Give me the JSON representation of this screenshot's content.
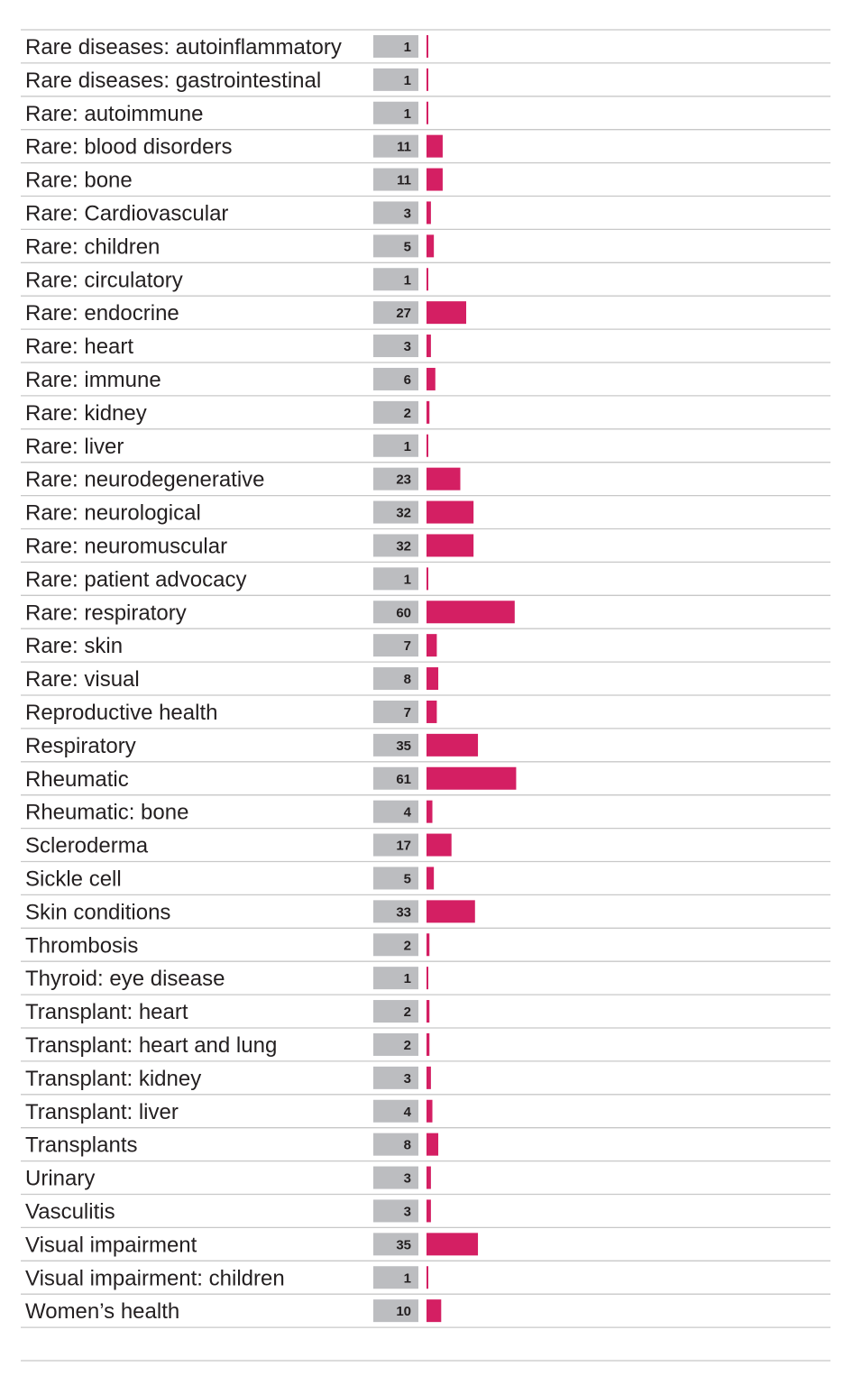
{
  "chart_data": {
    "type": "bar",
    "orientation": "horizontal",
    "categories": [
      "Rare diseases: autoinflammatory",
      "Rare diseases: gastrointestinal",
      "Rare: autoimmune",
      "Rare: blood disorders",
      "Rare: bone",
      "Rare: Cardiovascular",
      "Rare: children",
      "Rare: circulatory",
      "Rare: endocrine",
      "Rare: heart",
      "Rare: immune",
      "Rare: kidney",
      "Rare: liver",
      "Rare: neurodegenerative",
      "Rare: neurological",
      "Rare: neuromuscular",
      "Rare: patient advocacy",
      "Rare: respiratory",
      "Rare: skin",
      "Rare: visual",
      "Reproductive health",
      "Respiratory",
      "Rheumatic",
      "Rheumatic: bone",
      "Scleroderma",
      "Sickle cell",
      "Skin conditions",
      "Thrombosis",
      "Thyroid: eye disease",
      "Transplant: heart",
      "Transplant: heart and lung",
      "Transplant: kidney",
      "Transplant: liver",
      "Transplants",
      "Urinary",
      "Vasculitis",
      "Visual impairment",
      "Visual impairment: children",
      "Women’s health"
    ],
    "values": [
      1,
      1,
      1,
      11,
      11,
      3,
      5,
      1,
      27,
      3,
      6,
      2,
      1,
      23,
      32,
      32,
      1,
      60,
      7,
      8,
      7,
      35,
      61,
      4,
      17,
      5,
      33,
      2,
      1,
      2,
      2,
      3,
      4,
      8,
      3,
      3,
      35,
      1,
      10
    ],
    "title": "",
    "xlabel": "",
    "ylabel": "",
    "grid": false,
    "colors": {
      "bar": "#d41f63",
      "value_box": "#bcbdc0",
      "rule": "#c8c8c8",
      "text": "#231f20"
    }
  }
}
